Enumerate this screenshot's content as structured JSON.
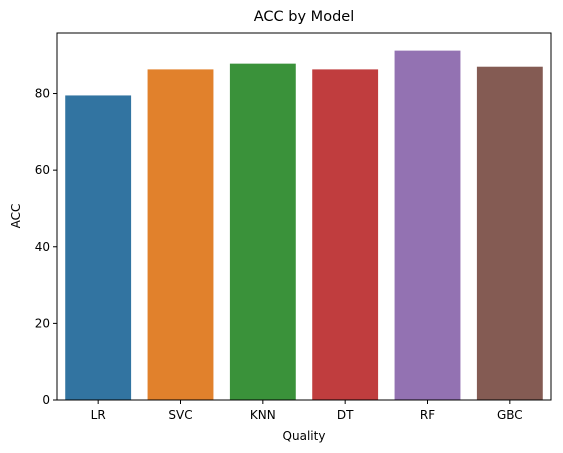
{
  "chart_data": {
    "type": "bar",
    "title": "ACC by Model",
    "xlabel": "Quality",
    "ylabel": "ACC",
    "categories": [
      "LR",
      "SVC",
      "KNN",
      "DT",
      "RF",
      "GBC"
    ],
    "values": [
      79.5,
      86.3,
      87.8,
      86.3,
      91.2,
      87.0
    ],
    "colors": [
      "#3274a1",
      "#e1812c",
      "#3a923a",
      "#c03d3e",
      "#9372b2",
      "#845b53"
    ],
    "ylim": [
      0,
      95.8
    ],
    "yticks": [
      0,
      20,
      40,
      60,
      80
    ],
    "grid": false,
    "legend": "none"
  }
}
